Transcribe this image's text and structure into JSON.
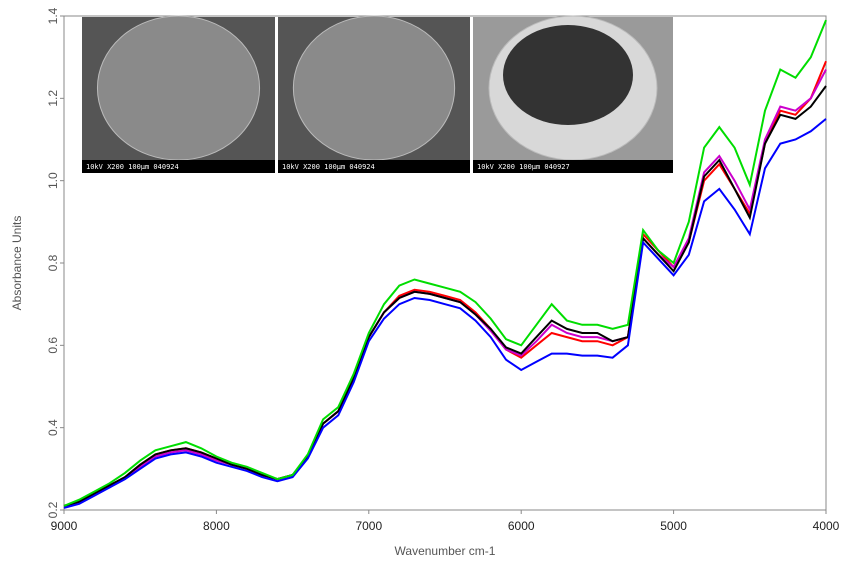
{
  "chart_data": {
    "type": "line",
    "xlabel": "Wavenumber cm-1",
    "ylabel": "Absorbance Units",
    "xlim": [
      9000,
      4000
    ],
    "xticks": [
      9000,
      8000,
      7000,
      6000,
      5000,
      4000
    ],
    "ylim": [
      0.2,
      1.4
    ],
    "yticks": [
      0.2,
      0.4,
      0.6,
      0.8,
      {
        "value": 1,
        "label": "1.0"
      },
      1.2,
      1.4
    ],
    "insets": [
      {
        "label": "10kV X200 100µm 040924"
      },
      {
        "label": "10kV X200 100µm 040924"
      },
      {
        "label": "10kV X200 100µm 040927"
      }
    ],
    "x": [
      9000,
      8900,
      8800,
      8700,
      8600,
      8500,
      8400,
      8300,
      8200,
      8100,
      8000,
      7900,
      7800,
      7700,
      7600,
      7500,
      7400,
      7300,
      7200,
      7100,
      7000,
      6900,
      6800,
      6700,
      6600,
      6500,
      6400,
      6300,
      6200,
      6100,
      6000,
      5900,
      5800,
      5700,
      5600,
      5500,
      5400,
      5300,
      5200,
      5100,
      5000,
      4900,
      4800,
      4700,
      4600,
      4500,
      4400,
      4300,
      4200,
      4100,
      4000
    ],
    "series": [
      {
        "color": "#ff0000",
        "values": [
          0.21,
          0.22,
          0.24,
          0.26,
          0.28,
          0.31,
          0.335,
          0.345,
          0.35,
          0.34,
          0.325,
          0.31,
          0.3,
          0.285,
          0.275,
          0.285,
          0.33,
          0.41,
          0.44,
          0.52,
          0.62,
          0.68,
          0.72,
          0.735,
          0.73,
          0.72,
          0.71,
          0.68,
          0.64,
          0.59,
          0.57,
          0.6,
          0.63,
          0.62,
          0.61,
          0.61,
          0.6,
          0.62,
          0.87,
          0.83,
          0.79,
          0.85,
          1.0,
          1.04,
          0.98,
          0.92,
          1.09,
          1.17,
          1.16,
          1.2,
          1.29
        ]
      },
      {
        "color": "#cc00cc",
        "values": [
          0.21,
          0.22,
          0.24,
          0.255,
          0.28,
          0.305,
          0.33,
          0.34,
          0.345,
          0.335,
          0.32,
          0.31,
          0.3,
          0.285,
          0.275,
          0.285,
          0.33,
          0.41,
          0.44,
          0.52,
          0.62,
          0.68,
          0.715,
          0.73,
          0.725,
          0.715,
          0.705,
          0.675,
          0.635,
          0.59,
          0.575,
          0.61,
          0.65,
          0.63,
          0.62,
          0.62,
          0.61,
          0.62,
          0.86,
          0.82,
          0.79,
          0.86,
          1.02,
          1.06,
          1.0,
          0.93,
          1.1,
          1.18,
          1.17,
          1.2,
          1.27
        ]
      },
      {
        "color": "#000000",
        "values": [
          0.21,
          0.22,
          0.24,
          0.26,
          0.28,
          0.31,
          0.335,
          0.345,
          0.35,
          0.34,
          0.325,
          0.31,
          0.3,
          0.285,
          0.275,
          0.285,
          0.33,
          0.41,
          0.44,
          0.52,
          0.62,
          0.68,
          0.715,
          0.73,
          0.725,
          0.715,
          0.705,
          0.675,
          0.64,
          0.595,
          0.58,
          0.62,
          0.66,
          0.64,
          0.63,
          0.63,
          0.61,
          0.62,
          0.86,
          0.82,
          0.78,
          0.85,
          1.01,
          1.05,
          0.98,
          0.91,
          1.09,
          1.16,
          1.15,
          1.18,
          1.23
        ]
      },
      {
        "color": "#0000ff",
        "values": [
          0.205,
          0.215,
          0.235,
          0.255,
          0.275,
          0.3,
          0.325,
          0.335,
          0.34,
          0.33,
          0.315,
          0.305,
          0.295,
          0.28,
          0.27,
          0.28,
          0.325,
          0.4,
          0.43,
          0.51,
          0.61,
          0.665,
          0.7,
          0.715,
          0.71,
          0.7,
          0.69,
          0.66,
          0.62,
          0.565,
          0.54,
          0.56,
          0.58,
          0.58,
          0.575,
          0.575,
          0.57,
          0.6,
          0.85,
          0.81,
          0.77,
          0.82,
          0.95,
          0.98,
          0.93,
          0.87,
          1.03,
          1.09,
          1.1,
          1.12,
          1.15
        ]
      },
      {
        "color": "#00dd00",
        "values": [
          0.21,
          0.225,
          0.245,
          0.265,
          0.29,
          0.32,
          0.345,
          0.355,
          0.365,
          0.35,
          0.33,
          0.315,
          0.305,
          0.29,
          0.275,
          0.285,
          0.335,
          0.42,
          0.45,
          0.53,
          0.63,
          0.7,
          0.745,
          0.76,
          0.75,
          0.74,
          0.73,
          0.705,
          0.665,
          0.615,
          0.6,
          0.65,
          0.7,
          0.66,
          0.65,
          0.65,
          0.64,
          0.65,
          0.88,
          0.83,
          0.8,
          0.9,
          1.08,
          1.13,
          1.08,
          0.99,
          1.17,
          1.27,
          1.25,
          1.3,
          1.39
        ]
      }
    ]
  }
}
